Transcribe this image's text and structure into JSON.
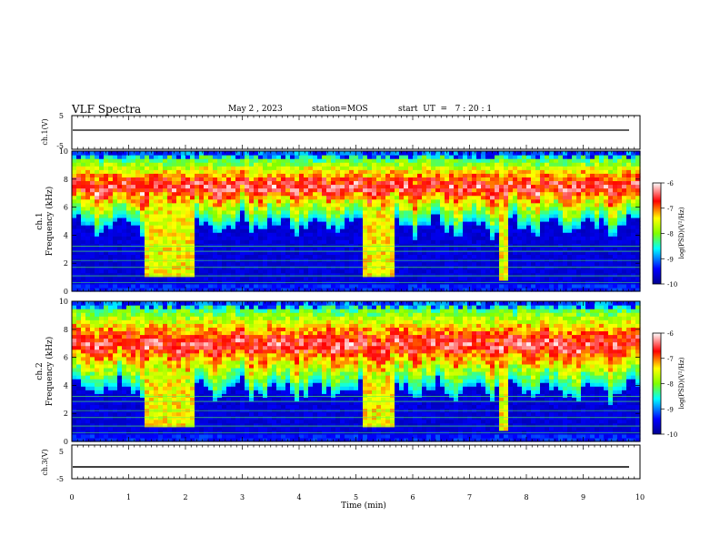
{
  "header": {
    "title": "VLF Spectra",
    "date": "May 2 , 2023",
    "station": "station=MOS",
    "start_time": "start  UT  =   7 : 20 : 1"
  },
  "chart_data": {
    "type": "heatmap",
    "title": "VLF Spectra",
    "x": {
      "label": "Time  (min)",
      "range": [
        0,
        10
      ],
      "ticks": [
        "0",
        "1",
        "2",
        "3",
        "4",
        "5",
        "6",
        "7",
        "8",
        "9",
        "10"
      ]
    },
    "panels": [
      {
        "id": "ch1-waveform",
        "ylabel": "ch.1(V)",
        "ylim": [
          -5,
          5
        ],
        "yticks": [
          "5",
          "-5"
        ]
      },
      {
        "id": "ch1-spectrogram",
        "ylabel_channel": "ch.1",
        "ylabel": "Frequency (kHz)",
        "ylim": [
          0,
          10
        ],
        "yticks": [
          "0",
          "2",
          "4",
          "6",
          "8",
          "10"
        ],
        "colorbar": {
          "label": "log(PSD)(V²/Hz)",
          "range": [
            -10,
            -6
          ],
          "ticks": [
            "-6",
            "-7",
            "-8",
            "-9",
            "-10"
          ]
        },
        "broadband_events_min": [
          [
            1.25,
            2.15
          ],
          [
            5.1,
            5.65
          ],
          [
            7.55,
            7.65
          ]
        ],
        "background_upper_band_khz": [
          5.5,
          9.5
        ]
      },
      {
        "id": "ch2-spectrogram",
        "ylabel_channel": "ch.2",
        "ylabel": "Frequency (kHz)",
        "ylim": [
          0,
          10
        ],
        "yticks": [
          "0",
          "2",
          "4",
          "6",
          "8",
          "10"
        ],
        "colorbar": {
          "label": "log(PSD)(V²/Hz)",
          "range": [
            -10,
            -6
          ],
          "ticks": [
            "-6",
            "-7",
            "-8",
            "-9",
            "-10"
          ]
        },
        "broadband_events_min": [
          [
            1.25,
            2.15
          ],
          [
            5.1,
            5.65
          ],
          [
            7.55,
            7.65
          ]
        ],
        "background_upper_band_khz": [
          4.5,
          9.5
        ]
      },
      {
        "id": "ch3-waveform",
        "ylabel": "ch.3(V)",
        "ylim": [
          -5,
          5
        ],
        "yticks": [
          "5",
          "-5"
        ]
      }
    ],
    "colors": {
      "jet": [
        "#00008f",
        "#0000ff",
        "#00ffff",
        "#80ff00",
        "#ffff00",
        "#ff0000",
        "#ffffff"
      ]
    }
  }
}
